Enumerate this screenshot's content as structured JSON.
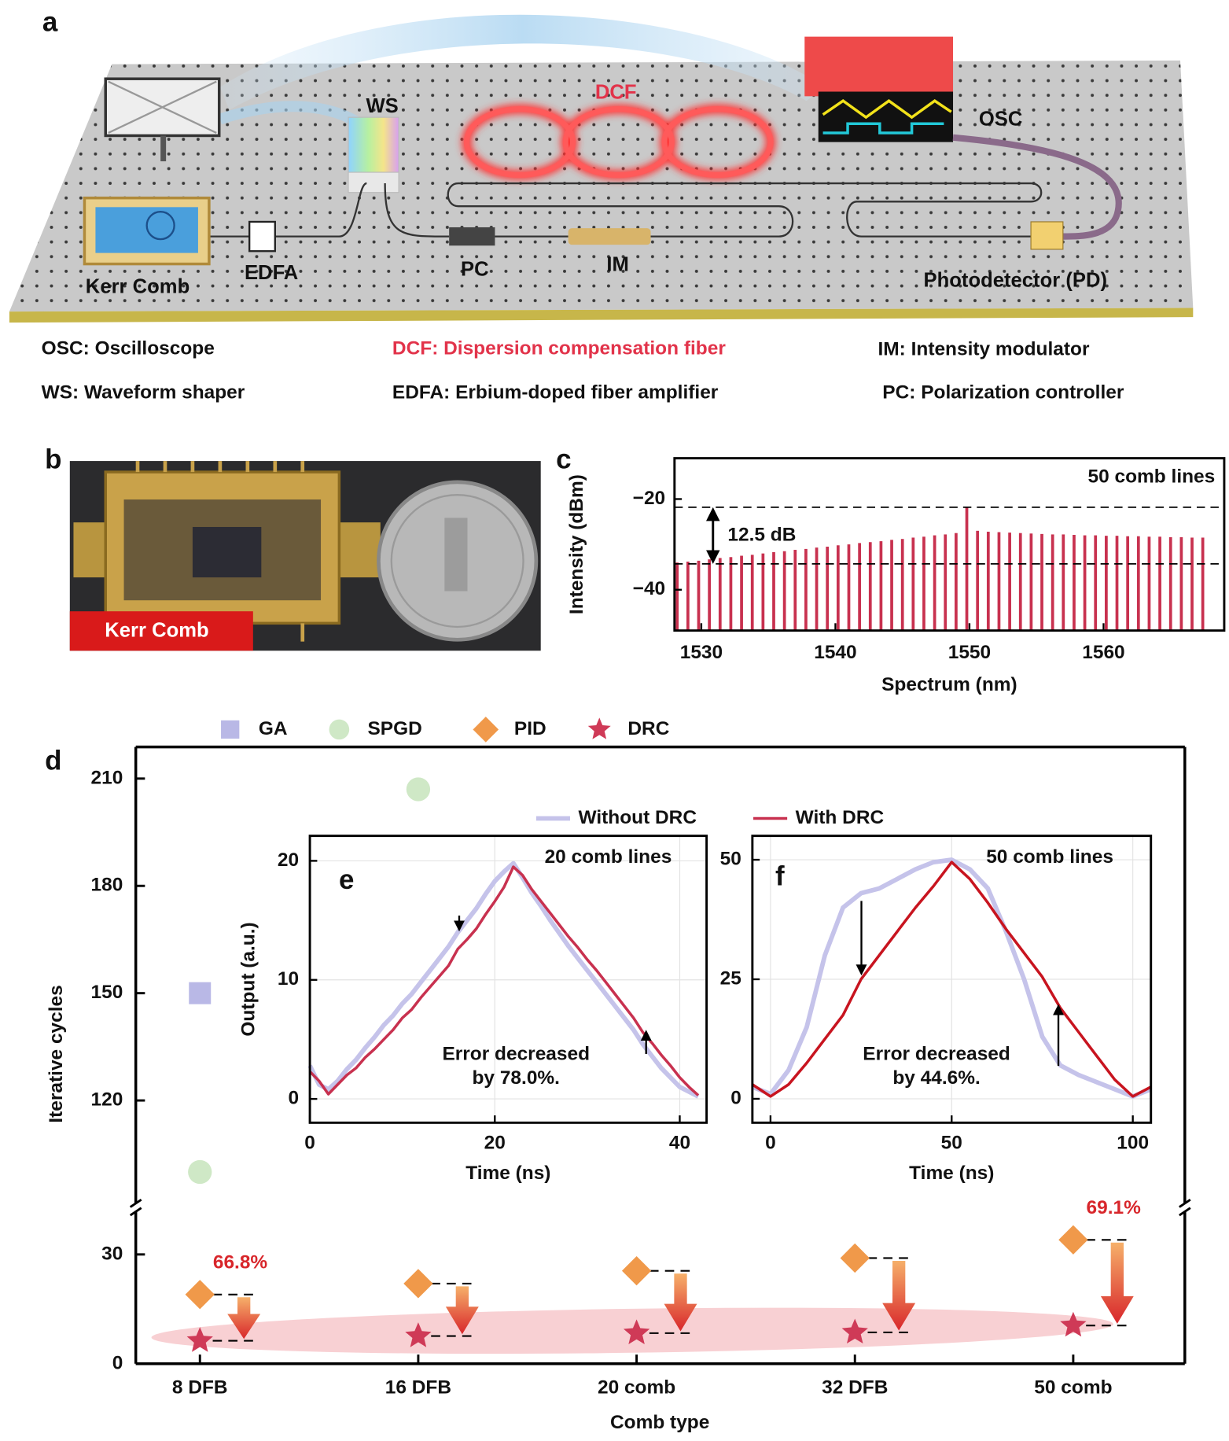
{
  "diagram": {
    "panel_label": "a",
    "components": {
      "ws": "WS",
      "dcf": "DCF",
      "osc": "OSC",
      "kerr_comb": "Kerr Comb",
      "edfa": "EDFA",
      "pc": "PC",
      "im": "IM",
      "pd": "Photodetector (PD)"
    },
    "legend": [
      [
        "OSC: Oscilloscope",
        "DCF: Dispersion compensation fiber",
        "IM: Intensity modulator"
      ],
      [
        "WS: Waveform shaper",
        "EDFA: Erbium-doped fiber amplifier",
        "PC: Polarization controller"
      ]
    ]
  },
  "photo": {
    "panel_label": "b",
    "caption": "Kerr Comb"
  },
  "chart_data": [
    {
      "type": "bar",
      "panel_label": "c",
      "annotation": "50 comb lines",
      "level_difference_label": "12.5 dB",
      "reference_lines": [
        -21.8,
        -34.3
      ],
      "x": [
        1528.2,
        1529.0,
        1529.8,
        1530.6,
        1531.4,
        1532.2,
        1533.0,
        1533.8,
        1534.6,
        1535.4,
        1536.2,
        1537.0,
        1537.8,
        1538.6,
        1539.4,
        1540.2,
        1541.0,
        1541.8,
        1542.6,
        1543.4,
        1544.2,
        1545.0,
        1545.8,
        1546.6,
        1547.4,
        1548.2,
        1549.0,
        1549.8,
        1550.6,
        1551.4,
        1552.2,
        1553.0,
        1553.8,
        1554.6,
        1555.4,
        1556.2,
        1557.0,
        1557.8,
        1558.6,
        1559.4,
        1560.2,
        1561.0,
        1561.8,
        1562.6,
        1563.4,
        1564.2,
        1565.0,
        1565.8,
        1566.6,
        1567.4
      ],
      "values": [
        -34.0,
        -33.8,
        -33.6,
        -33.3,
        -33.0,
        -32.8,
        -32.5,
        -32.3,
        -32.0,
        -31.7,
        -31.5,
        -31.2,
        -31.0,
        -30.7,
        -30.5,
        -30.2,
        -30.0,
        -29.7,
        -29.5,
        -29.3,
        -29.0,
        -28.8,
        -28.5,
        -28.3,
        -28.0,
        -27.8,
        -27.5,
        -21.8,
        -27.0,
        -27.2,
        -27.3,
        -27.4,
        -27.5,
        -27.6,
        -27.7,
        -27.8,
        -27.8,
        -27.9,
        -28.0,
        -28.0,
        -28.1,
        -28.1,
        -28.2,
        -28.2,
        -28.3,
        -28.3,
        -28.4,
        -28.4,
        -28.5,
        -28.5
      ],
      "color": "#c8314f",
      "xlim": [
        1528,
        1569
      ],
      "ylim": [
        -49,
        -11
      ],
      "xticks": [
        1530,
        1540,
        1550,
        1560
      ],
      "yticks": [
        {
          "value": -20,
          "label": "−20"
        },
        {
          "value": -40,
          "label": "−40"
        }
      ],
      "xlabel": "Spectrum (nm)",
      "ylabel": "Intensity (dBm)"
    },
    {
      "type": "scatter",
      "panel_label": "d",
      "categories": [
        "8 DFB",
        "16 DFB",
        "20 comb",
        "32 DFB",
        "50 comb"
      ],
      "series": [
        {
          "name": "GA",
          "color": "#b9b8e6",
          "marker": "square",
          "values": [
            150,
            null,
            null,
            null,
            null
          ]
        },
        {
          "name": "SPGD",
          "color": "#cfe8c6",
          "marker": "circle",
          "values": [
            100,
            207,
            null,
            null,
            null
          ]
        },
        {
          "name": "PID",
          "color": "#f0994a",
          "marker": "diamond",
          "values": [
            19,
            22,
            25.5,
            29,
            34
          ]
        },
        {
          "name": "DRC",
          "color": "#cf3a57",
          "marker": "star",
          "values": [
            6.3,
            7.6,
            8.4,
            8.6,
            10.5
          ]
        }
      ],
      "reduction_labels": [
        "66.8%",
        null,
        null,
        null,
        "69.1%"
      ],
      "ylim": [
        0,
        215
      ],
      "y_break": [
        41,
        92
      ],
      "yticks": [
        0,
        30,
        120,
        150,
        180,
        210
      ],
      "xlabel": "Comb type",
      "ylabel": "Iterative cycles"
    },
    {
      "type": "line",
      "panel_label": "e",
      "annotation": "20 comb lines",
      "note": [
        "Error decreased",
        "by 78.0%."
      ],
      "x": [
        0,
        1,
        2,
        3,
        4,
        5,
        6,
        7,
        8,
        9,
        10,
        11,
        12,
        13,
        14,
        15,
        16,
        17,
        18,
        19,
        20,
        21,
        22,
        23,
        24,
        25,
        26,
        27,
        28,
        29,
        30,
        31,
        32,
        33,
        34,
        35,
        36,
        37,
        38,
        39,
        40,
        41,
        42
      ],
      "series": [
        {
          "name": "Without DRC",
          "color": "#c5c3ea",
          "values": [
            2.8,
            1.2,
            0.8,
            1.5,
            2.5,
            3.3,
            4.3,
            5.2,
            6.2,
            7.0,
            8.0,
            8.8,
            9.8,
            10.8,
            11.8,
            12.8,
            14.0,
            15.0,
            16.0,
            17.2,
            18.3,
            19.1,
            19.8,
            18.6,
            17.3,
            16.2,
            15.0,
            13.9,
            12.8,
            11.8,
            10.8,
            9.8,
            8.8,
            7.8,
            6.8,
            5.8,
            4.6,
            3.6,
            2.6,
            1.8,
            1.0,
            0.6,
            0.2
          ]
        },
        {
          "name": "With DRC",
          "color": "#c8314f",
          "values": [
            2.3,
            1.5,
            0.4,
            1.2,
            2.0,
            2.6,
            3.5,
            4.2,
            5.0,
            5.8,
            6.8,
            7.5,
            8.5,
            9.4,
            10.3,
            11.2,
            12.6,
            13.4,
            14.3,
            15.5,
            16.6,
            17.8,
            19.5,
            18.8,
            17.6,
            16.6,
            15.6,
            14.6,
            13.6,
            12.7,
            11.7,
            10.8,
            9.8,
            8.8,
            7.8,
            6.8,
            5.6,
            4.7,
            3.7,
            2.8,
            1.8,
            1.0,
            0.3
          ]
        }
      ],
      "xlim": [
        0,
        42.9
      ],
      "ylim": [
        -2,
        22.1
      ],
      "xticks": [
        0,
        20,
        40
      ],
      "yticks": [
        0,
        10,
        20
      ],
      "grid": true,
      "xlabel": "Time (ns)",
      "ylabel": "Output (a.u.)"
    },
    {
      "type": "line",
      "panel_label": "f",
      "annotation": "50 comb lines",
      "note": [
        "Error decreased",
        "by 44.6%."
      ],
      "x": [
        -5,
        0,
        5,
        10,
        15,
        20,
        25,
        30,
        35,
        40,
        45,
        50,
        55,
        60,
        65,
        70,
        75,
        80,
        85,
        90,
        95,
        100,
        105
      ],
      "series": [
        {
          "color": "#c5c3ea",
          "values": [
            2.5,
            1,
            6,
            15,
            30,
            40,
            43,
            44,
            46,
            48,
            49.5,
            50,
            48,
            44,
            35,
            25,
            13,
            7,
            5,
            3.5,
            2,
            0.5,
            2
          ]
        },
        {
          "color": "#c8141f",
          "values": [
            3,
            0.5,
            3,
            7.5,
            12.5,
            17.5,
            25,
            30,
            35,
            40,
            44.5,
            49.5,
            46,
            41,
            35.5,
            30.5,
            25.5,
            19,
            14,
            9,
            4,
            0.5,
            2.5
          ]
        }
      ],
      "xlim": [
        -5,
        105
      ],
      "ylim": [
        -5,
        55
      ],
      "xticks": [
        0,
        50,
        100
      ],
      "yticks": [
        0,
        25,
        50
      ],
      "grid": true,
      "xlabel": "Time (ns)"
    }
  ]
}
